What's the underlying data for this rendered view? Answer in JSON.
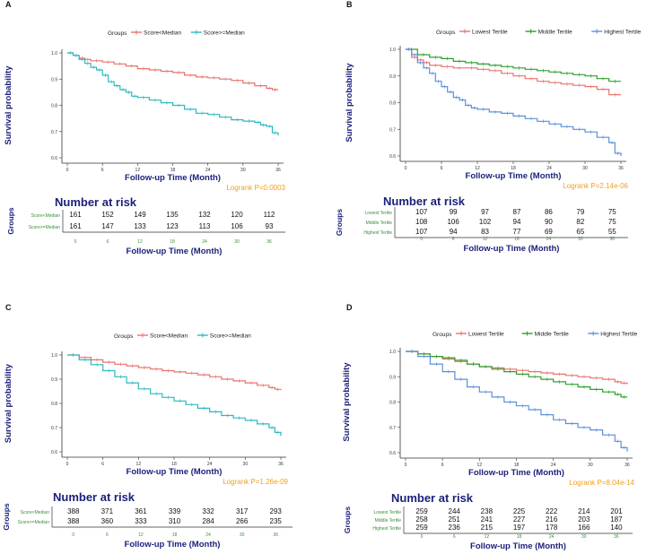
{
  "figure": {
    "colors": {
      "red": "#E8736C",
      "teal": "#2BB8C0",
      "green": "#2CA02C",
      "blue": "#5B8FDB",
      "axis_text": "#1a1f7a",
      "logrank": "#F0A020",
      "tick_green": "#3a8f3a"
    }
  },
  "chart_data": [
    {
      "panel": "A",
      "type": "line",
      "legend_title": "Groups",
      "series": [
        {
          "name": "Score<Median",
          "color": "#E8736C",
          "x": [
            0,
            1,
            2,
            3,
            4,
            6,
            8,
            10,
            12,
            14,
            16,
            18,
            20,
            22,
            24,
            26,
            28,
            30,
            32,
            34,
            35,
            36
          ],
          "y": [
            1.0,
            0.99,
            0.98,
            0.975,
            0.97,
            0.965,
            0.958,
            0.95,
            0.94,
            0.935,
            0.93,
            0.925,
            0.915,
            0.908,
            0.905,
            0.9,
            0.895,
            0.885,
            0.875,
            0.865,
            0.86,
            0.86
          ]
        },
        {
          "name": "Score>=Median",
          "color": "#2BB8C0",
          "x": [
            0,
            1,
            2,
            3,
            4,
            5,
            6,
            7,
            8,
            9,
            10,
            11,
            12,
            14,
            16,
            18,
            20,
            22,
            24,
            26,
            28,
            30,
            32,
            33,
            34,
            35,
            36
          ],
          "y": [
            1.0,
            0.99,
            0.975,
            0.96,
            0.945,
            0.935,
            0.915,
            0.89,
            0.875,
            0.86,
            0.85,
            0.835,
            0.83,
            0.82,
            0.81,
            0.8,
            0.785,
            0.77,
            0.765,
            0.755,
            0.745,
            0.74,
            0.735,
            0.725,
            0.72,
            0.695,
            0.685
          ]
        }
      ],
      "ylim": [
        0.6,
        1.0
      ],
      "xlim": [
        0,
        36
      ],
      "xticks": [
        0,
        6,
        12,
        18,
        24,
        30,
        36
      ],
      "yticks": [
        0.6,
        0.7,
        0.8,
        0.9,
        1.0
      ],
      "ylabel": "Survival probability",
      "xlabel": "Follow-up Time (Month)",
      "logrank": "Logrank P=0.0003",
      "risk": {
        "title": "Number at risk",
        "ylabel": "Groups",
        "rows": [
          {
            "label": "Score<Median",
            "values": [
              161,
              152,
              149,
              135,
              132,
              120,
              112
            ]
          },
          {
            "label": "Score>=Median",
            "values": [
              161,
              147,
              133,
              123,
              113,
              106,
              93
            ]
          }
        ],
        "ticks": [
          0,
          6,
          12,
          18,
          24,
          30,
          36
        ],
        "xlabel": "Follow-up Time (Month)"
      }
    },
    {
      "panel": "B",
      "type": "line",
      "legend_title": "Groups",
      "series": [
        {
          "name": "Lowest Tertile",
          "color": "#E8736C",
          "x": [
            0,
            1,
            2,
            3,
            4,
            6,
            8,
            10,
            12,
            14,
            16,
            18,
            20,
            22,
            24,
            26,
            28,
            30,
            32,
            34,
            36
          ],
          "y": [
            1.0,
            0.97,
            0.96,
            0.95,
            0.94,
            0.935,
            0.93,
            0.93,
            0.925,
            0.92,
            0.91,
            0.9,
            0.89,
            0.88,
            0.875,
            0.87,
            0.865,
            0.86,
            0.85,
            0.83,
            0.83
          ]
        },
        {
          "name": "Middle Tertile",
          "color": "#2CA02C",
          "x": [
            0,
            2,
            4,
            6,
            8,
            10,
            12,
            14,
            16,
            18,
            20,
            22,
            24,
            26,
            28,
            30,
            32,
            34,
            36
          ],
          "y": [
            1.0,
            0.98,
            0.97,
            0.965,
            0.955,
            0.95,
            0.945,
            0.94,
            0.935,
            0.93,
            0.925,
            0.92,
            0.915,
            0.91,
            0.905,
            0.9,
            0.89,
            0.88,
            0.88
          ]
        },
        {
          "name": "Highest Tertile",
          "color": "#5B8FDB",
          "x": [
            0,
            1,
            2,
            3,
            4,
            5,
            6,
            7,
            8,
            9,
            10,
            11,
            12,
            14,
            16,
            18,
            20,
            22,
            24,
            26,
            28,
            30,
            32,
            34,
            35,
            36
          ],
          "y": [
            1.0,
            0.98,
            0.95,
            0.93,
            0.91,
            0.88,
            0.86,
            0.84,
            0.82,
            0.81,
            0.79,
            0.78,
            0.775,
            0.765,
            0.76,
            0.75,
            0.74,
            0.73,
            0.72,
            0.71,
            0.7,
            0.69,
            0.67,
            0.65,
            0.61,
            0.6
          ]
        }
      ],
      "ylim": [
        0.6,
        1.0
      ],
      "xlim": [
        0,
        36
      ],
      "xticks": [
        0,
        6,
        12,
        18,
        24,
        30,
        36
      ],
      "yticks": [
        0.6,
        0.7,
        0.8,
        0.9,
        1.0
      ],
      "ylabel": "Survival probability",
      "xlabel": "Follow-up Time (Month)",
      "logrank": "Logrank P=2.14e-06",
      "risk": {
        "title": "Number at risk",
        "ylabel": "Groups",
        "rows": [
          {
            "label": "Lowest Tertile",
            "values": [
              107,
              99,
              97,
              87,
              86,
              79,
              75
            ]
          },
          {
            "label": "Middle Tertile",
            "values": [
              108,
              106,
              102,
              94,
              90,
              82,
              75
            ]
          },
          {
            "label": "Highest Tertile",
            "values": [
              107,
              94,
              83,
              77,
              69,
              65,
              55
            ]
          }
        ],
        "ticks": [
          0,
          6,
          12,
          18,
          24,
          30,
          36
        ],
        "xlabel": "Follow-up Time (Month)"
      }
    },
    {
      "panel": "C",
      "type": "line",
      "legend_title": "Groups",
      "series": [
        {
          "name": "Score<Median",
          "color": "#E8736C",
          "x": [
            0,
            2,
            4,
            6,
            8,
            10,
            12,
            14,
            16,
            18,
            20,
            22,
            24,
            26,
            28,
            30,
            32,
            34,
            35,
            36
          ],
          "y": [
            1.0,
            0.99,
            0.98,
            0.97,
            0.962,
            0.955,
            0.948,
            0.942,
            0.935,
            0.93,
            0.925,
            0.918,
            0.91,
            0.9,
            0.893,
            0.885,
            0.875,
            0.865,
            0.858,
            0.855
          ]
        },
        {
          "name": "Score>=Median",
          "color": "#2BB8C0",
          "x": [
            0,
            2,
            4,
            6,
            8,
            10,
            12,
            14,
            16,
            18,
            20,
            22,
            24,
            26,
            28,
            30,
            32,
            34,
            35,
            36
          ],
          "y": [
            1.0,
            0.98,
            0.96,
            0.935,
            0.91,
            0.885,
            0.86,
            0.84,
            0.825,
            0.81,
            0.795,
            0.78,
            0.765,
            0.75,
            0.74,
            0.73,
            0.715,
            0.7,
            0.68,
            0.665
          ]
        }
      ],
      "ylim": [
        0.6,
        1.0
      ],
      "xlim": [
        0,
        36
      ],
      "xticks": [
        0,
        6,
        12,
        18,
        24,
        30,
        36
      ],
      "yticks": [
        0.6,
        0.7,
        0.8,
        0.9,
        1.0
      ],
      "ylabel": "Survival probability",
      "xlabel": "Follow-up Time (Month)",
      "logrank": "Logrank P=1.26e-09",
      "risk": {
        "title": "Number at risk",
        "ylabel": "Groups",
        "rows": [
          {
            "label": "Score<Median",
            "values": [
              388,
              371,
              361,
              339,
              332,
              317,
              293
            ]
          },
          {
            "label": "Score>=Median",
            "values": [
              388,
              360,
              333,
              310,
              284,
              266,
              235
            ]
          }
        ],
        "ticks": [
          0,
          6,
          12,
          18,
          24,
          30,
          36
        ],
        "xlabel": "Follow-up Time (Month)"
      }
    },
    {
      "panel": "D",
      "type": "line",
      "legend_title": "Groups",
      "series": [
        {
          "name": "Lowest Tertile",
          "color": "#E8736C",
          "x": [
            0,
            2,
            4,
            6,
            8,
            10,
            12,
            14,
            16,
            18,
            20,
            22,
            24,
            26,
            28,
            30,
            32,
            34,
            35,
            36
          ],
          "y": [
            1.0,
            0.99,
            0.98,
            0.97,
            0.96,
            0.95,
            0.94,
            0.935,
            0.93,
            0.925,
            0.92,
            0.915,
            0.91,
            0.905,
            0.9,
            0.895,
            0.89,
            0.88,
            0.875,
            0.87
          ]
        },
        {
          "name": "Middle Tertile",
          "color": "#2CA02C",
          "x": [
            0,
            2,
            4,
            6,
            8,
            10,
            12,
            14,
            16,
            18,
            20,
            22,
            24,
            26,
            28,
            30,
            32,
            34,
            35,
            36
          ],
          "y": [
            1.0,
            0.99,
            0.98,
            0.975,
            0.965,
            0.95,
            0.94,
            0.93,
            0.92,
            0.91,
            0.9,
            0.89,
            0.88,
            0.87,
            0.86,
            0.85,
            0.84,
            0.83,
            0.82,
            0.82
          ]
        },
        {
          "name": "Highest Tertile",
          "color": "#5B8FDB",
          "x": [
            0,
            2,
            4,
            6,
            8,
            10,
            12,
            14,
            16,
            18,
            20,
            22,
            24,
            26,
            28,
            30,
            32,
            34,
            35,
            36
          ],
          "y": [
            1.0,
            0.98,
            0.95,
            0.92,
            0.89,
            0.86,
            0.84,
            0.82,
            0.8,
            0.785,
            0.77,
            0.75,
            0.73,
            0.715,
            0.7,
            0.69,
            0.67,
            0.645,
            0.62,
            0.605
          ]
        }
      ],
      "ylim": [
        0.6,
        1.0
      ],
      "xlim": [
        0,
        36
      ],
      "xticks": [
        0,
        6,
        12,
        18,
        24,
        30,
        36
      ],
      "yticks": [
        0.6,
        0.7,
        0.8,
        0.9,
        1.0
      ],
      "ylabel": "Survival probability",
      "xlabel": "Follow-up Time (Month)",
      "logrank": "Logrank P=8.04e-14",
      "risk": {
        "title": "Number at risk",
        "ylabel": "Groups",
        "rows": [
          {
            "label": "Lowest Tertile",
            "values": [
              259,
              244,
              238,
              225,
              222,
              214,
              201
            ]
          },
          {
            "label": "Middle Tertile",
            "values": [
              258,
              251,
              241,
              227,
              216,
              203,
              187
            ]
          },
          {
            "label": "Highest Tertile",
            "values": [
              259,
              236,
              215,
              197,
              178,
              166,
              140
            ]
          }
        ],
        "ticks": [
          0,
          6,
          12,
          18,
          24,
          30,
          36
        ],
        "xlabel": "Follow-up Time (Month)"
      }
    }
  ]
}
